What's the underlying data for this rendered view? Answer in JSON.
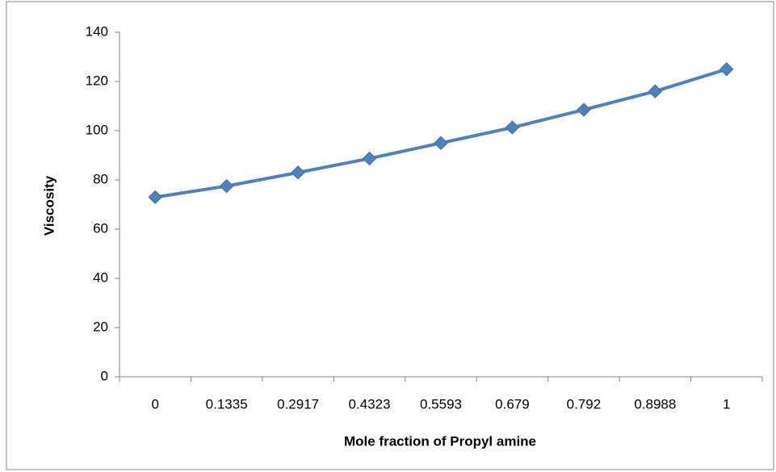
{
  "chart_data": {
    "type": "line",
    "categories": [
      "0",
      "0.1335",
      "0.2917",
      "0.4323",
      "0.5593",
      "0.679",
      "0.792",
      "0.8988",
      "1"
    ],
    "series": [
      {
        "name": "Viscosity",
        "color": "#4f81bd",
        "values": [
          73,
          77.5,
          83,
          88.7,
          95,
          101.3,
          108.5,
          116,
          125
        ]
      }
    ],
    "xlabel": "Mole fraction of Propyl amine",
    "ylabel": "Viscosity",
    "ylim": [
      0,
      140
    ],
    "yticks": [
      0,
      20,
      40,
      60,
      80,
      100,
      120,
      140
    ],
    "grid": false
  }
}
